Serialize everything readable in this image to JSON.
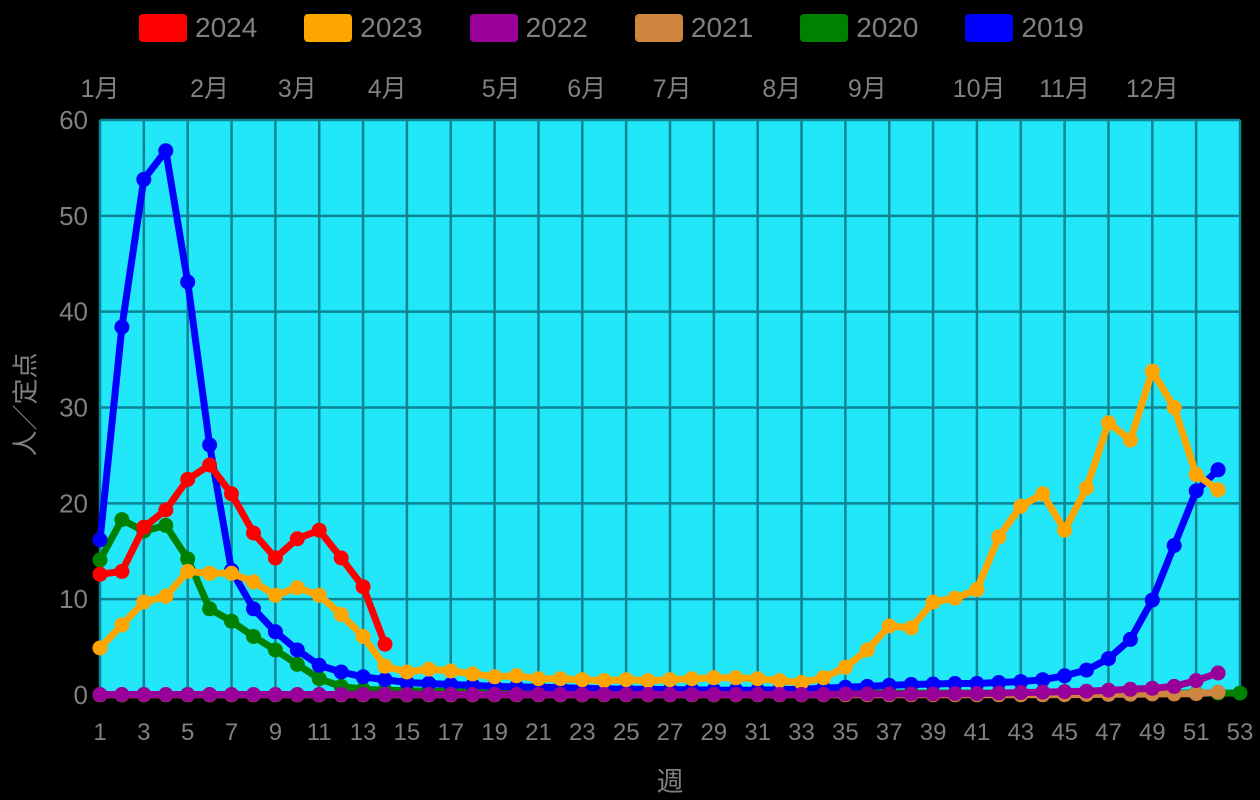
{
  "legend": {
    "items": [
      {
        "label": "2024",
        "color": "#ff0000"
      },
      {
        "label": "2023",
        "color": "#ffa500"
      },
      {
        "label": "2022",
        "color": "#990099"
      },
      {
        "label": "2021",
        "color": "#cd853f"
      },
      {
        "label": "2020",
        "color": "#008000"
      },
      {
        "label": "2019",
        "color": "#0000ff"
      }
    ]
  },
  "chart_data": {
    "type": "line",
    "title": "",
    "xlabel": "週",
    "ylabel": "人／定点",
    "x_range": [
      1,
      53
    ],
    "ylim": [
      0,
      60
    ],
    "grid": true,
    "legend_position": "top",
    "plot_bg_color": "#22e7f8",
    "grid_color": "#0d8494",
    "tick_text_color": "#808080",
    "x_ticks": [
      1,
      3,
      5,
      7,
      9,
      11,
      13,
      15,
      17,
      19,
      21,
      23,
      25,
      27,
      29,
      31,
      33,
      35,
      37,
      39,
      41,
      43,
      45,
      47,
      49,
      51,
      53
    ],
    "y_ticks": [
      0,
      10,
      20,
      30,
      40,
      50,
      60
    ],
    "month_labels": [
      {
        "label": "1月",
        "week": 1.0
      },
      {
        "label": "2月",
        "week": 6.0
      },
      {
        "label": "3月",
        "week": 10.0
      },
      {
        "label": "4月",
        "week": 14.1
      },
      {
        "label": "5月",
        "week": 19.3
      },
      {
        "label": "6月",
        "week": 23.2
      },
      {
        "label": "7月",
        "week": 27.1
      },
      {
        "label": "8月",
        "week": 32.1
      },
      {
        "label": "9月",
        "week": 36.0
      },
      {
        "label": "10月",
        "week": 41.1
      },
      {
        "label": "11月",
        "week": 45.0
      },
      {
        "label": "12月",
        "week": 49.0
      }
    ],
    "draw_order": [
      "2020",
      "2019",
      "2021",
      "2023",
      "2024",
      "2022"
    ],
    "series": [
      {
        "name": "2024",
        "color": "#ff0000",
        "start_week": 1,
        "values": [
          12.6,
          12.9,
          17.5,
          19.3,
          22.5,
          24.0,
          21.0,
          16.9,
          14.3,
          16.3,
          17.2,
          14.3,
          11.3,
          5.3
        ]
      },
      {
        "name": "2023",
        "color": "#ffa500",
        "start_week": 1,
        "values": [
          4.9,
          7.3,
          9.7,
          10.3,
          12.9,
          12.7,
          12.7,
          11.8,
          10.4,
          11.2,
          10.4,
          8.4,
          6.1,
          3.0,
          2.4,
          2.7,
          2.5,
          2.2,
          1.9,
          2.0,
          1.7,
          1.7,
          1.6,
          1.5,
          1.6,
          1.5,
          1.6,
          1.7,
          1.8,
          1.8,
          1.7,
          1.5,
          1.3,
          1.8,
          2.9,
          4.7,
          7.2,
          7.0,
          9.7,
          10.1,
          11.0,
          16.5,
          19.7,
          21.0,
          17.2,
          21.6,
          28.4,
          26.6,
          33.8,
          30.0,
          23.0,
          21.4
        ]
      },
      {
        "name": "2022",
        "color": "#990099",
        "start_week": 1,
        "values": [
          0.05,
          0.05,
          0.05,
          0.05,
          0.05,
          0.05,
          0.05,
          0.05,
          0.05,
          0.05,
          0.05,
          0.05,
          0.05,
          0.05,
          0.05,
          0.05,
          0.05,
          0.05,
          0.05,
          0.05,
          0.05,
          0.05,
          0.05,
          0.05,
          0.05,
          0.05,
          0.05,
          0.05,
          0.05,
          0.05,
          0.05,
          0.05,
          0.05,
          0.05,
          0.1,
          0.1,
          0.1,
          0.1,
          0.1,
          0.15,
          0.15,
          0.2,
          0.25,
          0.3,
          0.35,
          0.4,
          0.5,
          0.6,
          0.7,
          0.9,
          1.5,
          2.3
        ]
      },
      {
        "name": "2021",
        "color": "#cd853f",
        "start_week": 1,
        "values": [
          0.02,
          0.02,
          0.02,
          0.02,
          0.02,
          0.02,
          0.02,
          0.02,
          0.02,
          0.02,
          0.02,
          0.02,
          0.02,
          0.02,
          0.02,
          0.02,
          0.02,
          0.02,
          0.02,
          0.02,
          0.02,
          0.02,
          0.02,
          0.02,
          0.02,
          0.02,
          0.02,
          0.02,
          0.02,
          0.02,
          0.02,
          0.02,
          0.02,
          0.02,
          0.02,
          0.02,
          0.02,
          0.02,
          0.02,
          0.02,
          0.02,
          0.02,
          0.02,
          0.02,
          0.03,
          0.05,
          0.06,
          0.08,
          0.1,
          0.12,
          0.15,
          0.3
        ]
      },
      {
        "name": "2020",
        "color": "#008000",
        "start_week": 1,
        "values": [
          14.1,
          18.3,
          17.1,
          17.7,
          14.2,
          9.0,
          7.7,
          6.1,
          4.7,
          3.2,
          1.7,
          0.9,
          0.6,
          0.5,
          0.45,
          0.4,
          0.4,
          0.35,
          0.35,
          0.3,
          0.3,
          0.3,
          0.3,
          0.25,
          0.25,
          0.25,
          0.25,
          0.2,
          0.2,
          0.2,
          0.2,
          0.2,
          0.2,
          0.2,
          0.2,
          0.2,
          0.2,
          0.2,
          0.2,
          0.2,
          0.2,
          0.2,
          0.2,
          0.2,
          0.2,
          0.2,
          0.2,
          0.2,
          0.2,
          0.2,
          0.2,
          0.2,
          0.2
        ]
      },
      {
        "name": "2019",
        "color": "#0000ff",
        "start_week": 1,
        "values": [
          16.2,
          38.4,
          53.8,
          56.8,
          43.1,
          26.1,
          13.0,
          9.0,
          6.6,
          4.7,
          3.1,
          2.4,
          1.9,
          1.6,
          1.3,
          1.2,
          1.1,
          1.0,
          0.9,
          0.85,
          0.8,
          0.75,
          0.7,
          0.65,
          0.6,
          0.6,
          0.55,
          0.55,
          0.5,
          0.5,
          0.5,
          0.55,
          0.6,
          0.7,
          0.8,
          0.9,
          1.0,
          1.1,
          1.15,
          1.2,
          1.2,
          1.3,
          1.4,
          1.6,
          2.0,
          2.6,
          3.8,
          5.8,
          9.9,
          15.6,
          21.3,
          23.5
        ]
      }
    ]
  }
}
